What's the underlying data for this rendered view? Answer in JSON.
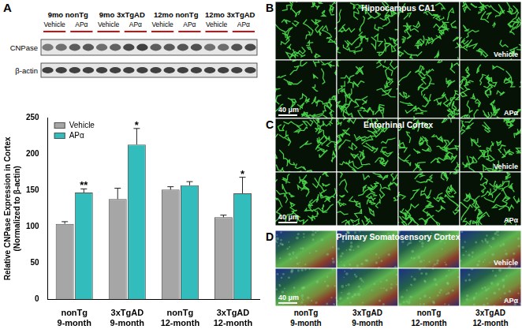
{
  "figure": {
    "chart_panel": "A",
    "blot": {
      "groups": [
        "9mo nonTg",
        "9mo 3xTgAD",
        "12mo nonTg",
        "12mo 3xTgAD"
      ],
      "conditions": [
        "Vehicle",
        "APα"
      ],
      "bands": [
        "CNPase",
        "β-actin"
      ]
    },
    "images": {
      "panels": [
        {
          "letter": "B",
          "title": "Hippocampus CA1",
          "style": "fibers"
        },
        {
          "letter": "C",
          "title": "Entorhinal Cortex",
          "style": "fibers"
        },
        {
          "letter": "D",
          "title": "Primary Somatosensory Cortex",
          "style": "merged"
        }
      ],
      "rows": [
        "Vehicle",
        "APα"
      ],
      "scale_bar": "40 μm",
      "columns": [
        [
          "nonTg",
          "9-month"
        ],
        [
          "3xTgAD",
          "9-month"
        ],
        [
          "nonTg",
          "12-month"
        ],
        [
          "3xTgAD",
          "12-month"
        ]
      ]
    }
  },
  "chart_data": {
    "type": "bar",
    "y_label": [
      "Relative CNPase Expression in Cortex",
      "(Normalized to β-actin)"
    ],
    "categories": [
      [
        "nonTg",
        "9-month"
      ],
      [
        "3xTgAD",
        "9-month"
      ],
      [
        "nonTg",
        "12-month"
      ],
      [
        "3xTgAD",
        "12-month"
      ]
    ],
    "series": [
      {
        "name": "Vehicle",
        "color": "#a6a6a6",
        "values": [
          104,
          138,
          151,
          113
        ],
        "errors": [
          3,
          15,
          4,
          3
        ],
        "annotations": [
          null,
          null,
          null,
          null
        ]
      },
      {
        "name": "APα",
        "color": "#33bcbc",
        "values": [
          147,
          213,
          157,
          146
        ],
        "errors": [
          5,
          22,
          5,
          22
        ],
        "annotations": [
          "**",
          "*",
          null,
          "*"
        ]
      }
    ],
    "ylim": [
      0,
      250
    ],
    "yticks": [
      0,
      50,
      100,
      150,
      200,
      250
    ],
    "grid": false,
    "legend": "upper left"
  }
}
